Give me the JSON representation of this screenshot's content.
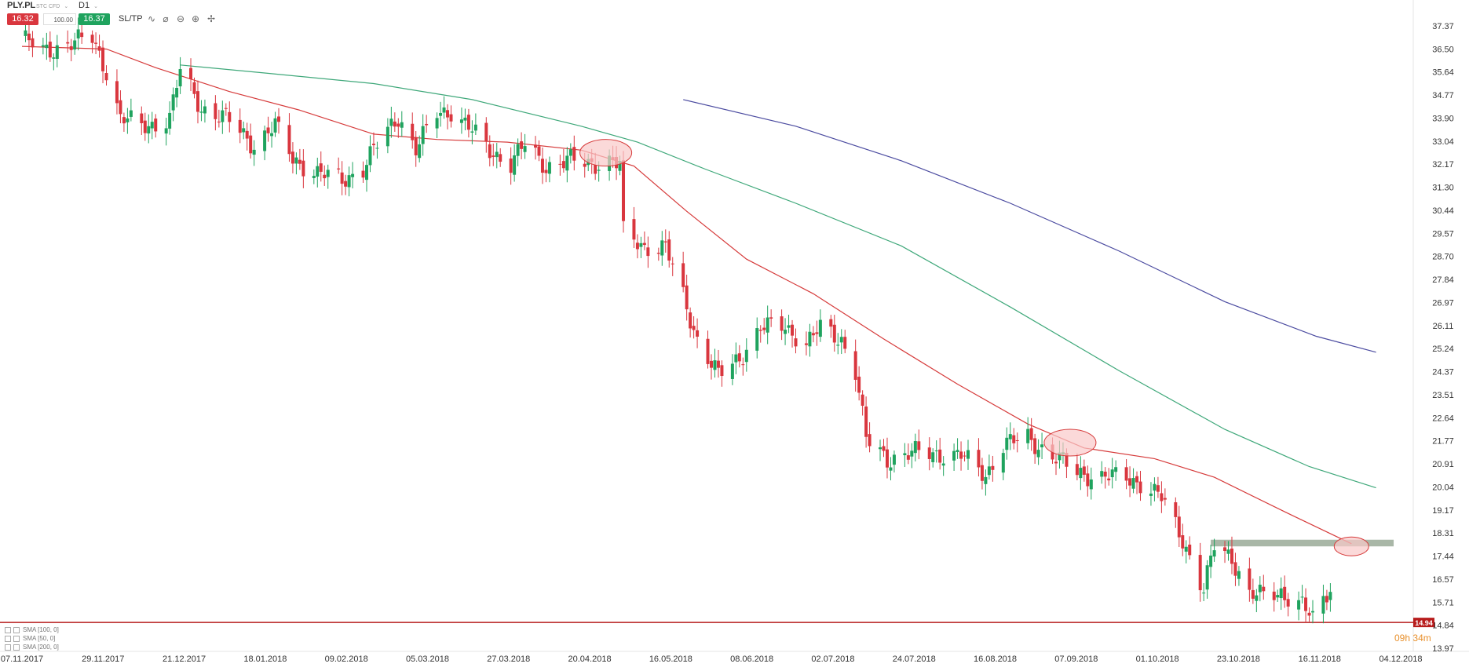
{
  "toolbar": {
    "symbol": "PLY.PL",
    "instrument_type": "STC CFD",
    "timeframe": "D1",
    "sell_price": "16.32",
    "volume": "100.00",
    "buy_price": "16.37",
    "sltp_label": "SL/TP",
    "icons": [
      "line-chart-icon",
      "indicators-icon",
      "zoom-out-icon",
      "zoom-in-icon",
      "crosshair-icon"
    ]
  },
  "legend": [
    {
      "label": "SMA [100, 0]"
    },
    {
      "label": "SMA [50, 0]"
    },
    {
      "label": "SMA [200, 0]"
    }
  ],
  "countdown": {
    "hours": "09",
    "h": "h",
    "minutes": "34",
    "m": "m"
  },
  "colors": {
    "bull": "#1fa35e",
    "bear": "#d9363e",
    "sma50": "#d63b3b",
    "sma100": "#3fa87a",
    "sma200": "#4b4ba0",
    "price_line": "#b71c1c",
    "resistance_band": "#9aaa98",
    "highlight_fill": "#f9c9c9",
    "highlight_stroke": "#d63b3b"
  },
  "chart_data": {
    "type": "candlestick",
    "current_price_label": "14.94",
    "y_ticks": [
      "37.37",
      "36.50",
      "35.64",
      "34.77",
      "33.90",
      "33.04",
      "32.17",
      "31.30",
      "30.44",
      "29.57",
      "28.70",
      "27.84",
      "26.97",
      "26.11",
      "25.24",
      "24.37",
      "23.51",
      "22.64",
      "21.77",
      "20.91",
      "20.04",
      "19.17",
      "18.31",
      "17.44",
      "16.57",
      "15.71",
      "14.84",
      "13.97"
    ],
    "x_ticks": [
      "07.11.2017",
      "29.11.2017",
      "21.12.2017",
      "18.01.2018",
      "09.02.2018",
      "05.03.2018",
      "27.03.2018",
      "20.04.2018",
      "16.05.2018",
      "08.06.2018",
      "02.07.2018",
      "24.07.2018",
      "16.08.2018",
      "07.09.2018",
      "01.10.2018",
      "23.10.2018",
      "16.11.2018",
      "04.12.2018"
    ],
    "ylim": [
      13.97,
      37.37
    ],
    "date_range": [
      "2017-11-07",
      "2018-12-04"
    ],
    "price_anchors": [
      [
        "2017-11-07",
        36.9
      ],
      [
        "2017-11-13",
        36.4
      ],
      [
        "2017-11-20",
        36.7
      ],
      [
        "2017-11-27",
        36.9
      ],
      [
        "2017-12-01",
        35.7
      ],
      [
        "2017-12-05",
        33.9
      ],
      [
        "2017-12-11",
        33.6
      ],
      [
        "2017-12-15",
        33.7
      ],
      [
        "2017-12-19",
        33.9
      ],
      [
        "2017-12-22",
        35.7
      ],
      [
        "2017-12-28",
        34.3
      ],
      [
        "2018-01-05",
        33.8
      ],
      [
        "2018-01-12",
        32.9
      ],
      [
        "2018-01-18",
        33.6
      ],
      [
        "2018-01-23",
        32.4
      ],
      [
        "2018-01-30",
        31.8
      ],
      [
        "2018-02-06",
        31.6
      ],
      [
        "2018-02-12",
        32.0
      ],
      [
        "2018-02-16",
        32.9
      ],
      [
        "2018-02-22",
        34.0
      ],
      [
        "2018-02-27",
        32.7
      ],
      [
        "2018-03-05",
        34.1
      ],
      [
        "2018-03-09",
        34.2
      ],
      [
        "2018-03-15",
        33.4
      ],
      [
        "2018-03-20",
        32.7
      ],
      [
        "2018-03-26",
        32.2
      ],
      [
        "2018-03-30",
        32.9
      ],
      [
        "2018-04-05",
        32.1
      ],
      [
        "2018-04-11",
        32.3
      ],
      [
        "2018-04-18",
        32.2
      ],
      [
        "2018-04-23",
        32.3
      ],
      [
        "2018-04-26",
        32.1
      ],
      [
        "2018-04-27",
        29.6
      ],
      [
        "2018-05-03",
        29.1
      ],
      [
        "2018-05-09",
        29.0
      ],
      [
        "2018-05-14",
        27.2
      ],
      [
        "2018-05-18",
        25.6
      ],
      [
        "2018-05-24",
        24.2
      ],
      [
        "2018-05-30",
        24.9
      ],
      [
        "2018-06-05",
        26.0
      ],
      [
        "2018-06-12",
        26.1
      ],
      [
        "2018-06-18",
        25.4
      ],
      [
        "2018-06-22",
        26.0
      ],
      [
        "2018-06-28",
        25.6
      ],
      [
        "2018-07-02",
        24.4
      ],
      [
        "2018-07-05",
        21.8
      ],
      [
        "2018-07-11",
        21.1
      ],
      [
        "2018-07-18",
        21.3
      ],
      [
        "2018-07-25",
        21.3
      ],
      [
        "2018-08-01",
        21.2
      ],
      [
        "2018-08-08",
        20.5
      ],
      [
        "2018-08-13",
        21.6
      ],
      [
        "2018-08-20",
        21.9
      ],
      [
        "2018-08-27",
        21.2
      ],
      [
        "2018-09-03",
        20.6
      ],
      [
        "2018-09-10",
        20.4
      ],
      [
        "2018-09-17",
        20.4
      ],
      [
        "2018-09-21",
        20.2
      ],
      [
        "2018-09-27",
        19.6
      ],
      [
        "2018-10-03",
        18.1
      ],
      [
        "2018-10-09",
        16.1
      ],
      [
        "2018-10-12",
        17.8
      ],
      [
        "2018-10-17",
        17.4
      ],
      [
        "2018-10-22",
        16.0
      ],
      [
        "2018-10-26",
        15.9
      ],
      [
        "2018-10-31",
        16.1
      ],
      [
        "2018-11-06",
        15.6
      ],
      [
        "2018-11-09",
        15.0
      ],
      [
        "2018-11-14",
        16.3
      ]
    ],
    "sma50": [
      [
        "2017-11-07",
        36.6
      ],
      [
        "2017-12-01",
        36.5
      ],
      [
        "2017-12-15",
        35.8
      ],
      [
        "2018-01-05",
        34.9
      ],
      [
        "2018-01-25",
        34.2
      ],
      [
        "2018-02-15",
        33.3
      ],
      [
        "2018-03-05",
        33.1
      ],
      [
        "2018-03-25",
        33.0
      ],
      [
        "2018-04-15",
        32.7
      ],
      [
        "2018-04-30",
        32.1
      ],
      [
        "2018-05-15",
        30.4
      ],
      [
        "2018-06-01",
        28.6
      ],
      [
        "2018-06-20",
        27.3
      ],
      [
        "2018-07-10",
        25.6
      ],
      [
        "2018-07-31",
        23.9
      ],
      [
        "2018-08-20",
        22.4
      ],
      [
        "2018-09-05",
        21.5
      ],
      [
        "2018-09-25",
        21.1
      ],
      [
        "2018-10-12",
        20.4
      ],
      [
        "2018-11-01",
        19.1
      ],
      [
        "2018-11-20",
        17.9
      ]
    ],
    "sma100": [
      [
        "2017-12-22",
        35.9
      ],
      [
        "2018-01-15",
        35.6
      ],
      [
        "2018-02-15",
        35.2
      ],
      [
        "2018-03-15",
        34.6
      ],
      [
        "2018-04-15",
        33.6
      ],
      [
        "2018-05-01",
        33.0
      ],
      [
        "2018-05-20",
        32.0
      ],
      [
        "2018-06-15",
        30.7
      ],
      [
        "2018-07-15",
        29.1
      ],
      [
        "2018-08-15",
        26.8
      ],
      [
        "2018-09-15",
        24.4
      ],
      [
        "2018-10-15",
        22.2
      ],
      [
        "2018-11-08",
        20.8
      ],
      [
        "2018-11-27",
        20.0
      ]
    ],
    "sma200": [
      [
        "2018-05-14",
        34.6
      ],
      [
        "2018-06-15",
        33.6
      ],
      [
        "2018-07-15",
        32.3
      ],
      [
        "2018-08-15",
        30.7
      ],
      [
        "2018-09-15",
        28.9
      ],
      [
        "2018-10-15",
        27.0
      ],
      [
        "2018-11-10",
        25.7
      ],
      [
        "2018-11-27",
        25.1
      ]
    ],
    "price_line": 14.94,
    "resistance_zone": {
      "from": "2018-10-11",
      "to": "2018-12-02",
      "low": 17.8,
      "high": 18.05
    },
    "highlights": [
      {
        "date": "2018-04-22",
        "price": 32.6
      },
      {
        "date": "2018-09-01",
        "price": 21.7
      },
      {
        "date": "2018-11-20",
        "price": 17.8
      }
    ]
  }
}
